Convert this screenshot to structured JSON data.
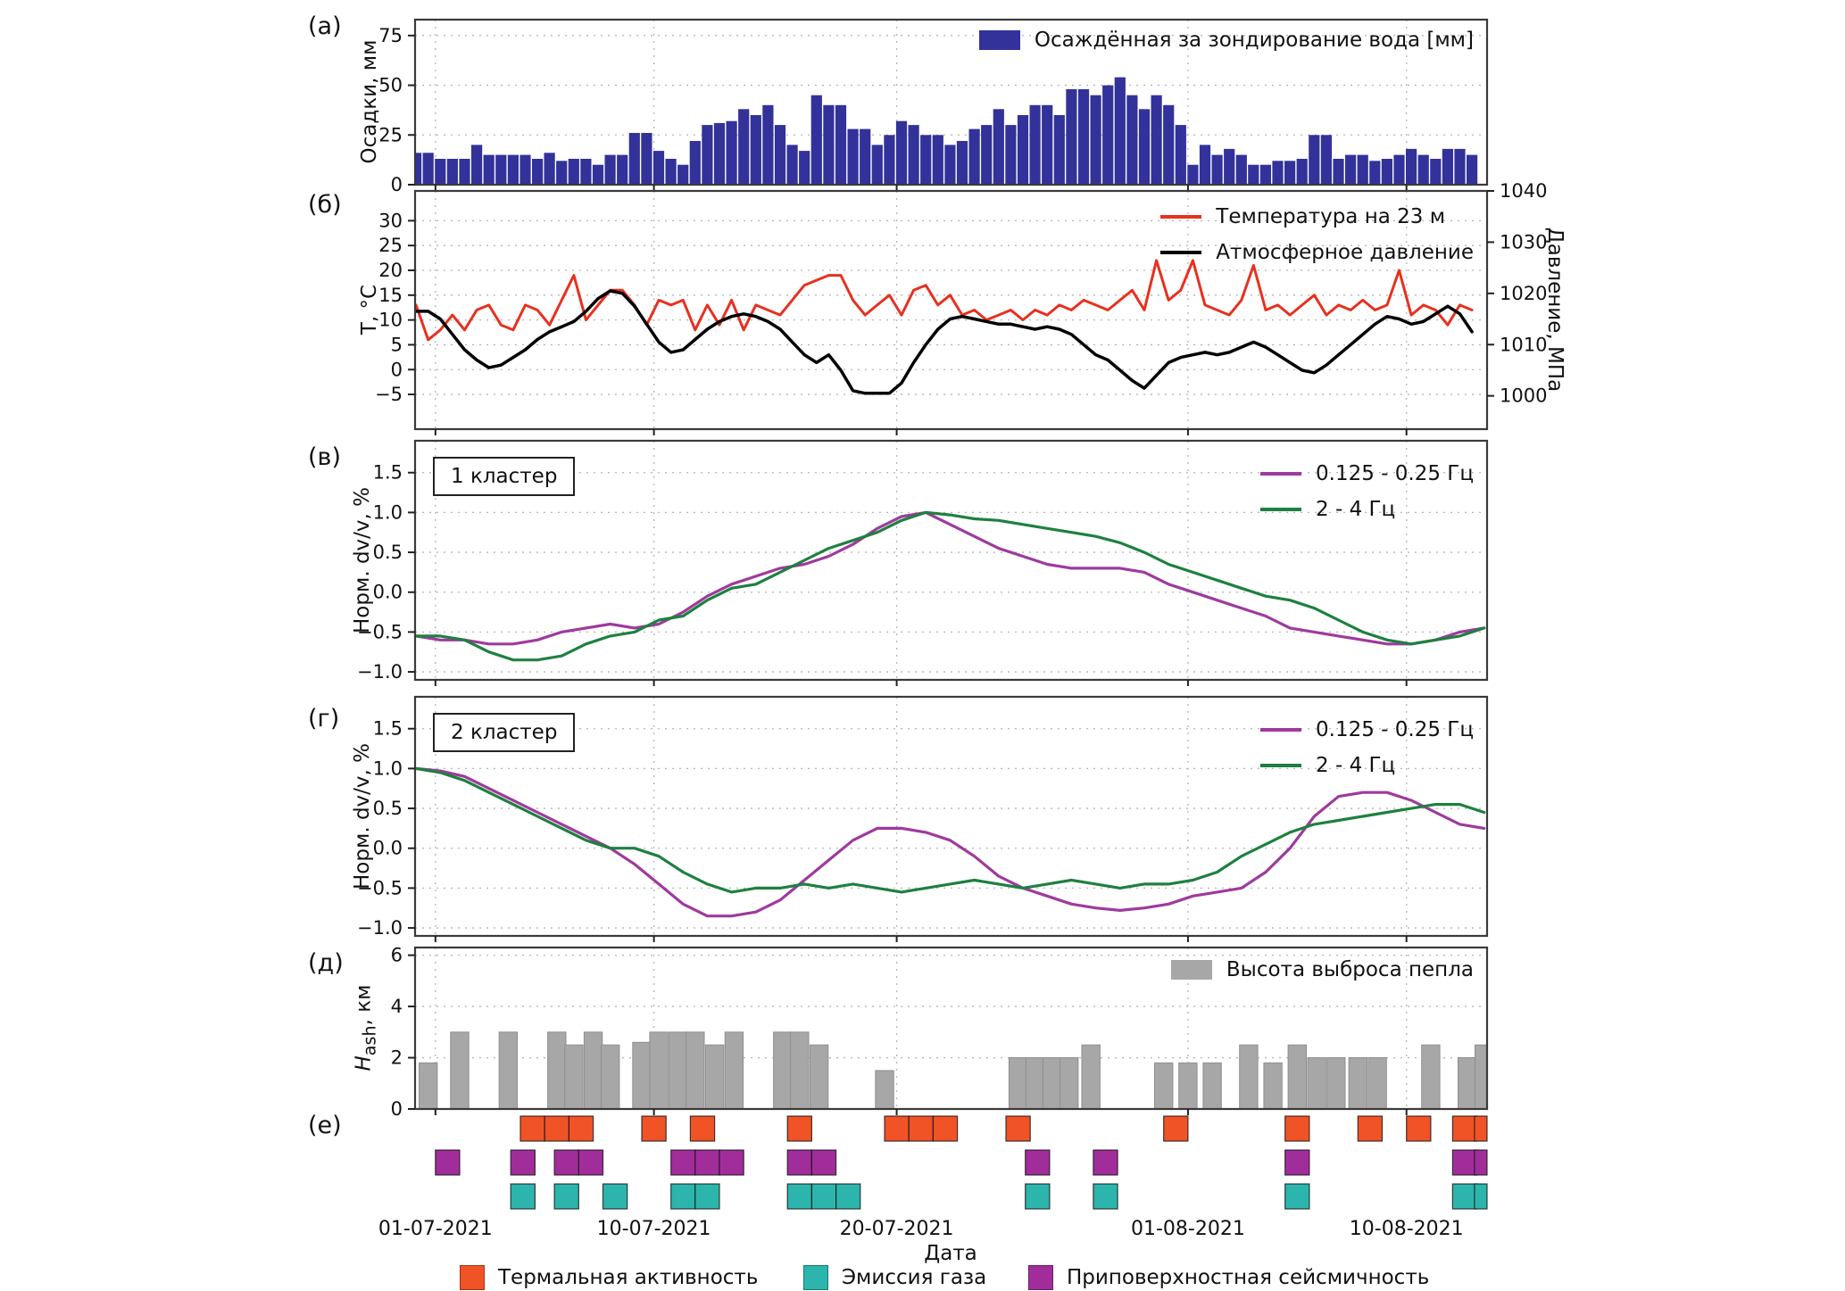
{
  "colors": {
    "precip": "#32329a",
    "temp": "#e8301f",
    "pressure": "#000000",
    "low_freq": "#9e3a9e",
    "high_freq": "#1e8040",
    "ash": "#a7a7a7",
    "thermal": "#f05326",
    "gas": "#2cb5ac",
    "seismic": "#a12d9b",
    "grid": "#b5b5b5",
    "frame": "#3a3a3a"
  },
  "figure": {
    "panel_letters": [
      "(а)",
      "(б)",
      "(в)",
      "(г)",
      "(д)",
      "(е)"
    ],
    "xlabel": "Дата",
    "x_range": [
      -0.84,
      43.32
    ],
    "x_ticks": [
      {
        "day": 0,
        "label": "01-07-2021"
      },
      {
        "day": 9,
        "label": "10-07-2021"
      },
      {
        "day": 19,
        "label": "20-07-2021"
      },
      {
        "day": 31,
        "label": "01-08-2021"
      },
      {
        "day": 40,
        "label": "10-08-2021"
      }
    ]
  },
  "chart_data": [
    {
      "id": "a",
      "type": "bar",
      "ylabel": "Осадки, мм",
      "legend": [
        {
          "label": "Осаждённая за зондирование вода [мм]",
          "color_key": "precip"
        }
      ],
      "ylim": [
        0,
        83
      ],
      "yticks": [
        0,
        25,
        50,
        75
      ],
      "ytick_labels": [
        "0",
        "25",
        "50",
        "75"
      ],
      "x_start": -0.8,
      "x_step": 0.5,
      "bar_width_days": 0.45,
      "values": [
        16,
        16,
        13,
        13,
        13,
        20,
        15,
        15,
        15,
        15,
        13,
        16,
        12,
        13,
        13,
        10,
        15,
        15,
        26,
        26,
        17,
        13,
        10,
        22,
        30,
        31,
        32,
        38,
        35,
        40,
        30,
        20,
        17,
        45,
        40,
        40,
        28,
        28,
        20,
        25,
        32,
        30,
        25,
        25,
        20,
        22,
        28,
        30,
        38,
        30,
        35,
        40,
        40,
        35,
        48,
        48,
        45,
        50,
        54,
        45,
        38,
        45,
        40,
        30,
        10,
        20,
        15,
        18,
        15,
        10,
        10,
        12,
        12,
        13,
        25,
        25,
        13,
        15,
        15,
        12,
        13,
        15,
        18,
        15,
        13,
        18,
        18,
        15
      ]
    },
    {
      "id": "b",
      "type": "line",
      "ylabel_left": "T, °C",
      "ylabel_right": "Давление, МПа",
      "ylim": [
        -12,
        36
      ],
      "yticks": [
        -5,
        0,
        5,
        10,
        15,
        20,
        25,
        30
      ],
      "ytick_labels": [
        "−5",
        "0",
        "5",
        "10",
        "15",
        "20",
        "25",
        "30"
      ],
      "ylim_right": [
        993.5,
        1040
      ],
      "yticks_right": [
        1000,
        1010,
        1020,
        1030,
        1040
      ],
      "series": [
        {
          "name": "Температура на 23 м",
          "color_key": "temp",
          "axis": "left",
          "x_start": -0.8,
          "x_step": 0.5,
          "values": [
            13,
            6,
            8,
            11,
            8,
            12,
            13,
            9,
            8,
            13,
            12,
            9,
            14,
            19,
            10,
            13,
            16,
            16,
            13,
            9,
            14,
            13,
            14,
            8,
            13,
            9,
            14,
            8,
            13,
            12,
            11,
            14,
            17,
            18,
            19,
            19,
            14,
            11,
            13,
            15,
            11,
            16,
            17,
            13,
            15,
            11,
            12,
            10,
            11,
            12,
            10,
            12,
            11,
            13,
            12,
            14,
            13,
            12,
            14,
            16,
            12,
            22,
            14,
            16,
            22,
            13,
            12,
            11,
            14,
            21,
            12,
            13,
            11,
            13,
            15,
            11,
            13,
            12,
            14,
            12,
            13,
            20,
            11,
            13,
            12,
            9,
            13,
            12
          ]
        },
        {
          "name": "Атмосферное давление",
          "color_key": "pressure",
          "axis": "right",
          "x_start": -0.8,
          "x_step": 0.5,
          "values": [
            1016.5,
            1016.5,
            1015,
            1012,
            1009,
            1007,
            1005.5,
            1006,
            1007.5,
            1009,
            1011,
            1012.5,
            1013.5,
            1014.5,
            1016.5,
            1019,
            1020.5,
            1020,
            1017.5,
            1014,
            1010.5,
            1008.5,
            1009,
            1011,
            1013,
            1014.5,
            1015.5,
            1016,
            1015.5,
            1014.5,
            1013,
            1010.5,
            1008,
            1006.5,
            1008,
            1005,
            1001,
            1000.5,
            1000.5,
            1000.5,
            1002.5,
            1006.5,
            1010,
            1013,
            1015,
            1015.5,
            1015,
            1014.5,
            1014,
            1014,
            1013.5,
            1013,
            1013.5,
            1013,
            1012,
            1010,
            1008,
            1007,
            1005,
            1003,
            1001.5,
            1004,
            1006.5,
            1007.5,
            1008,
            1008.5,
            1008,
            1008.5,
            1009.5,
            1010.5,
            1009.5,
            1008,
            1006.5,
            1005,
            1004.5,
            1006,
            1008,
            1010,
            1012,
            1014,
            1015.5,
            1015,
            1014,
            1014.5,
            1016,
            1017.5,
            1016,
            1012.5
          ]
        }
      ]
    },
    {
      "id": "v",
      "type": "line",
      "cluster_label": "1 кластер",
      "ylabel": "Норм. dv/v, %",
      "ylim": [
        -1.1,
        1.9
      ],
      "yticks": [
        -1.0,
        -0.5,
        0.0,
        0.5,
        1.0,
        1.5
      ],
      "ytick_labels": [
        "−1.0",
        "−0.5",
        "0.0",
        "0.5",
        "1.0",
        "1.5"
      ],
      "series": [
        {
          "name": "0.125 - 0.25 Гц",
          "color_key": "low_freq",
          "x_start": -0.8,
          "x_step": 1,
          "values": [
            -0.55,
            -0.6,
            -0.6,
            -0.65,
            -0.65,
            -0.6,
            -0.5,
            -0.45,
            -0.4,
            -0.45,
            -0.4,
            -0.25,
            -0.05,
            0.1,
            0.2,
            0.3,
            0.35,
            0.45,
            0.6,
            0.8,
            0.95,
            1.0,
            0.85,
            0.7,
            0.55,
            0.45,
            0.35,
            0.3,
            0.3,
            0.3,
            0.25,
            0.1,
            0.0,
            -0.1,
            -0.2,
            -0.3,
            -0.45,
            -0.5,
            -0.55,
            -0.6,
            -0.65,
            -0.65,
            -0.6,
            -0.5,
            -0.45
          ]
        },
        {
          "name": "2 - 4 Гц",
          "color_key": "high_freq",
          "x_start": -0.8,
          "x_step": 1,
          "values": [
            -0.55,
            -0.55,
            -0.6,
            -0.75,
            -0.85,
            -0.85,
            -0.8,
            -0.65,
            -0.55,
            -0.5,
            -0.35,
            -0.3,
            -0.1,
            0.05,
            0.1,
            0.25,
            0.4,
            0.55,
            0.65,
            0.75,
            0.9,
            1.0,
            0.97,
            0.92,
            0.9,
            0.85,
            0.8,
            0.75,
            0.7,
            0.62,
            0.5,
            0.35,
            0.25,
            0.15,
            0.05,
            -0.05,
            -0.1,
            -0.2,
            -0.35,
            -0.5,
            -0.6,
            -0.65,
            -0.6,
            -0.55,
            -0.45
          ]
        }
      ]
    },
    {
      "id": "g",
      "type": "line",
      "cluster_label": "2 кластер",
      "ylabel": "Норм. dv/v, %",
      "ylim": [
        -1.1,
        1.9
      ],
      "yticks": [
        -1.0,
        -0.5,
        0.0,
        0.5,
        1.0,
        1.5
      ],
      "ytick_labels": [
        "−1.0",
        "−0.5",
        "0.0",
        "0.5",
        "1.0",
        "1.5"
      ],
      "series": [
        {
          "name": "0.125 - 0.25 Гц",
          "color_key": "low_freq",
          "x_start": -0.8,
          "x_step": 1,
          "values": [
            1.0,
            0.97,
            0.9,
            0.75,
            0.6,
            0.45,
            0.3,
            0.15,
            0.0,
            -0.2,
            -0.45,
            -0.7,
            -0.85,
            -0.85,
            -0.8,
            -0.65,
            -0.4,
            -0.15,
            0.1,
            0.25,
            0.25,
            0.2,
            0.1,
            -0.1,
            -0.35,
            -0.5,
            -0.6,
            -0.7,
            -0.75,
            -0.78,
            -0.75,
            -0.7,
            -0.6,
            -0.55,
            -0.5,
            -0.3,
            0.0,
            0.4,
            0.65,
            0.7,
            0.7,
            0.6,
            0.45,
            0.3,
            0.25
          ]
        },
        {
          "name": "2 - 4 Гц",
          "color_key": "high_freq",
          "x_start": -0.8,
          "x_step": 1,
          "values": [
            1.0,
            0.95,
            0.85,
            0.7,
            0.55,
            0.4,
            0.25,
            0.1,
            0.0,
            0.0,
            -0.1,
            -0.3,
            -0.45,
            -0.55,
            -0.5,
            -0.5,
            -0.45,
            -0.5,
            -0.45,
            -0.5,
            -0.55,
            -0.5,
            -0.45,
            -0.4,
            -0.45,
            -0.5,
            -0.45,
            -0.4,
            -0.45,
            -0.5,
            -0.45,
            -0.45,
            -0.4,
            -0.3,
            -0.1,
            0.05,
            0.2,
            0.3,
            0.35,
            0.4,
            0.45,
            0.5,
            0.55,
            0.55,
            0.45
          ]
        }
      ]
    },
    {
      "id": "d",
      "type": "bar",
      "ylabel_parts": {
        "main": "H",
        "sub": "ash",
        "rest": ", км"
      },
      "legend": [
        {
          "label": "Высота выброса пепла",
          "color_key": "ash"
        }
      ],
      "ylim": [
        0,
        6.3
      ],
      "yticks": [
        0,
        2,
        4,
        6
      ],
      "ytick_labels": [
        "0",
        "2",
        "4",
        "6"
      ],
      "bar_width_days": 0.75,
      "bars": [
        {
          "d": -0.3,
          "h": 1.8
        },
        {
          "d": 1,
          "h": 3
        },
        {
          "d": 3,
          "h": 3
        },
        {
          "d": 5,
          "h": 3
        },
        {
          "d": 5.7,
          "h": 2.5
        },
        {
          "d": 6.5,
          "h": 3
        },
        {
          "d": 7.2,
          "h": 2.5
        },
        {
          "d": 8.5,
          "h": 2.6
        },
        {
          "d": 9.2,
          "h": 3
        },
        {
          "d": 10,
          "h": 3
        },
        {
          "d": 10.7,
          "h": 3
        },
        {
          "d": 11.5,
          "h": 2.5
        },
        {
          "d": 12.3,
          "h": 3
        },
        {
          "d": 14.3,
          "h": 3
        },
        {
          "d": 15,
          "h": 3
        },
        {
          "d": 15.8,
          "h": 2.5
        },
        {
          "d": 18.5,
          "h": 1.5
        },
        {
          "d": 24,
          "h": 2
        },
        {
          "d": 24.7,
          "h": 2
        },
        {
          "d": 25.4,
          "h": 2
        },
        {
          "d": 26.1,
          "h": 2
        },
        {
          "d": 27,
          "h": 2.5
        },
        {
          "d": 30,
          "h": 1.8
        },
        {
          "d": 31,
          "h": 1.8
        },
        {
          "d": 32,
          "h": 1.8
        },
        {
          "d": 33.5,
          "h": 2.5
        },
        {
          "d": 34.5,
          "h": 1.8
        },
        {
          "d": 35.5,
          "h": 2.5
        },
        {
          "d": 36.3,
          "h": 2
        },
        {
          "d": 37.1,
          "h": 2
        },
        {
          "d": 38,
          "h": 2
        },
        {
          "d": 38.8,
          "h": 2
        },
        {
          "d": 41,
          "h": 2.5
        },
        {
          "d": 42.5,
          "h": 2
        },
        {
          "d": 43.2,
          "h": 2.5
        }
      ]
    },
    {
      "id": "e",
      "type": "events",
      "rows": [
        {
          "name": "Термальная активность",
          "color_key": "thermal",
          "days": [
            4,
            5,
            6,
            9,
            11,
            15,
            19,
            20,
            21,
            24,
            30.5,
            35.5,
            38.5,
            40.5,
            42.4,
            43.3
          ]
        },
        {
          "name": "Приповерхностная сейсмичность",
          "color_key": "seismic",
          "days": [
            0.5,
            3.6,
            5.4,
            6.4,
            10.2,
            11.2,
            12.2,
            15,
            16,
            24.8,
            27.6,
            35.5,
            42.4,
            43.3
          ]
        },
        {
          "name": "Эмиссия газа",
          "color_key": "gas",
          "days": [
            3.6,
            5.4,
            7.4,
            10.2,
            11.2,
            15,
            16,
            17,
            24.8,
            27.6,
            35.5,
            42.4,
            43.3
          ]
        }
      ]
    }
  ],
  "bottom_legend": [
    {
      "label": "Термальная активность",
      "color_key": "thermal"
    },
    {
      "label": "Эмиссия газа",
      "color_key": "gas"
    },
    {
      "label": "Приповерхностная сейсмичность",
      "color_key": "seismic"
    }
  ]
}
